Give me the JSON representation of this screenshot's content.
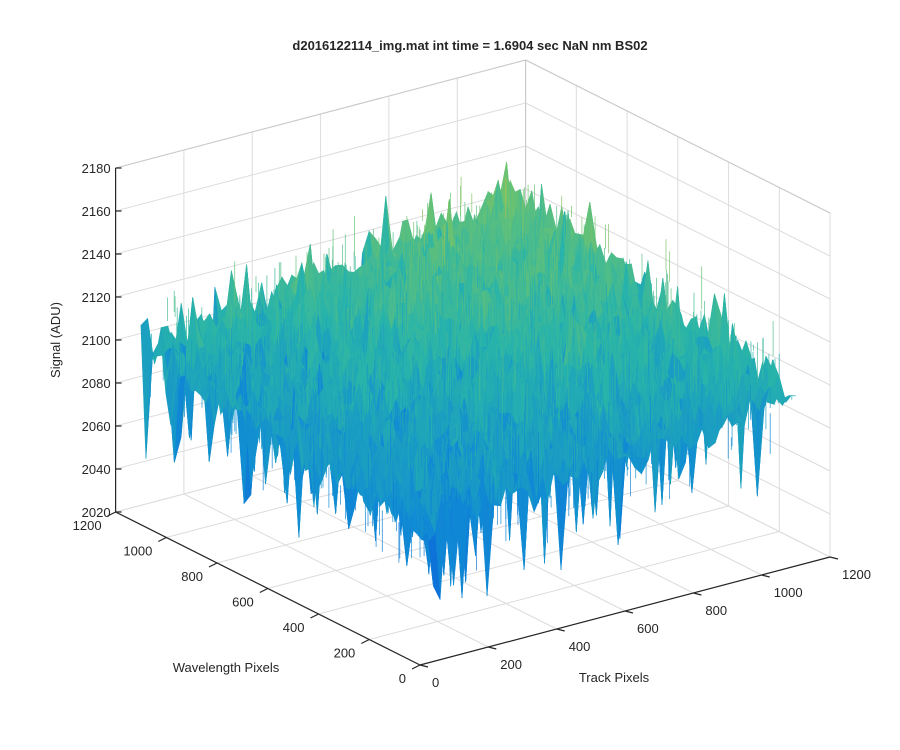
{
  "chart_data": {
    "type": "surface",
    "title": "d2016122114_img.mat int time = 1.6904 sec  NaN nm BS02",
    "xlabel": "Track Pixels",
    "ylabel": "Wavelength Pixels",
    "zlabel": "Signal (ADU)",
    "xlim": [
      0,
      1200
    ],
    "ylim": [
      0,
      1200
    ],
    "zlim": [
      2020,
      2180
    ],
    "x_ticks": [
      "0",
      "200",
      "400",
      "600",
      "800",
      "1000",
      "1200"
    ],
    "y_ticks": [
      "0",
      "200",
      "400",
      "600",
      "800",
      "1000",
      "1200"
    ],
    "z_ticks": [
      "2020",
      "2040",
      "2060",
      "2080",
      "2100",
      "2120",
      "2140",
      "2160",
      "2180"
    ],
    "grid": true,
    "colormap": "parula",
    "colors": {
      "low": "#0d74d6",
      "mid": "#2fb8a8",
      "high": "#eec443"
    },
    "grid_size": 1100,
    "signal_mean": 2105,
    "signal_range": [
      2030,
      2175
    ],
    "corner_levels": {
      "track0_wl0": 2085,
      "track1100_wl0": 2100,
      "track0_wl1100": 2100,
      "track1100_wl1100": 2125
    }
  }
}
